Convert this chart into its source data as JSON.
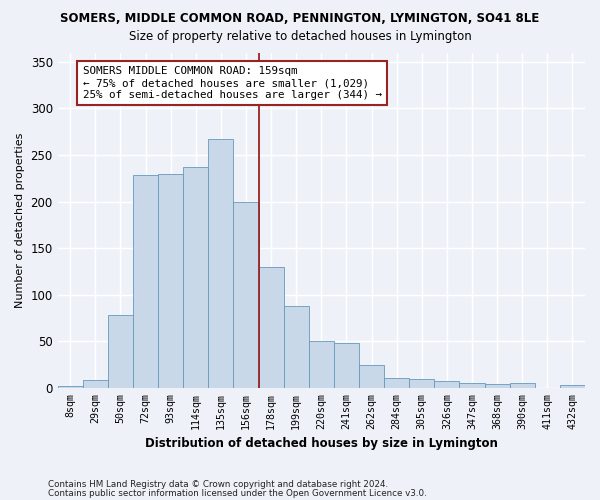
{
  "title": "SOMERS, MIDDLE COMMON ROAD, PENNINGTON, LYMINGTON, SO41 8LE",
  "subtitle": "Size of property relative to detached houses in Lymington",
  "xlabel": "Distribution of detached houses by size in Lymington",
  "ylabel": "Number of detached properties",
  "bar_color": "#c8d8e8",
  "bar_edge_color": "#6699bb",
  "categories": [
    "8sqm",
    "29sqm",
    "50sqm",
    "72sqm",
    "93sqm",
    "114sqm",
    "135sqm",
    "156sqm",
    "178sqm",
    "199sqm",
    "220sqm",
    "241sqm",
    "262sqm",
    "284sqm",
    "305sqm",
    "326sqm",
    "347sqm",
    "368sqm",
    "390sqm",
    "411sqm",
    "432sqm"
  ],
  "values": [
    2,
    8,
    78,
    228,
    230,
    237,
    267,
    200,
    130,
    88,
    50,
    48,
    25,
    11,
    9,
    7,
    5,
    4,
    5,
    0,
    3
  ],
  "vline_position": 7.5,
  "vline_color": "#992222",
  "annotation_text": "SOMERS MIDDLE COMMON ROAD: 159sqm\n← 75% of detached houses are smaller (1,029)\n25% of semi-detached houses are larger (344) →",
  "ylim": [
    0,
    360
  ],
  "yticks": [
    0,
    50,
    100,
    150,
    200,
    250,
    300,
    350
  ],
  "bg_color": "#eef2f8",
  "grid_color": "#ffffff",
  "footer1": "Contains HM Land Registry data © Crown copyright and database right 2024.",
  "footer2": "Contains public sector information licensed under the Open Government Licence v3.0."
}
